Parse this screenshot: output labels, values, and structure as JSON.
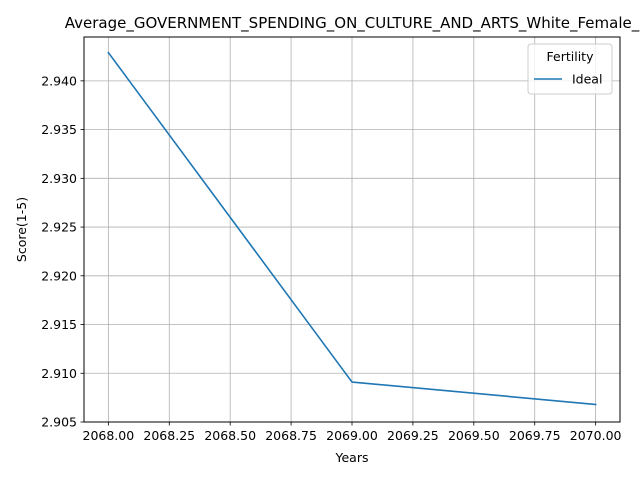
{
  "chart_data": {
    "type": "line",
    "title": "Average_GOVERNMENT_SPENDING_ON_CULTURE_AND_ARTS_White_Female_",
    "xlabel": "Years",
    "ylabel": "Score(1-5)",
    "xlim": [
      2067.9,
      2070.1
    ],
    "ylim": [
      2.905,
      2.9445
    ],
    "xticks": [
      2068.0,
      2068.25,
      2068.5,
      2068.75,
      2069.0,
      2069.25,
      2069.5,
      2069.75,
      2070.0
    ],
    "xtick_labels": [
      "2068.00",
      "2068.25",
      "2068.50",
      "2068.75",
      "2069.00",
      "2069.25",
      "2069.50",
      "2069.75",
      "2070.00"
    ],
    "yticks": [
      2.905,
      2.91,
      2.915,
      2.92,
      2.925,
      2.93,
      2.935,
      2.94
    ],
    "ytick_labels": [
      "2.905",
      "2.910",
      "2.915",
      "2.920",
      "2.925",
      "2.930",
      "2.935",
      "2.940"
    ],
    "grid": true,
    "legend": {
      "title": "Fertility",
      "position": "top-right"
    },
    "series": [
      {
        "name": "Ideal",
        "color": "#1f77b4",
        "x": [
          2068,
          2069,
          2070
        ],
        "y": [
          2.9429,
          2.9091,
          2.9068
        ]
      }
    ]
  }
}
